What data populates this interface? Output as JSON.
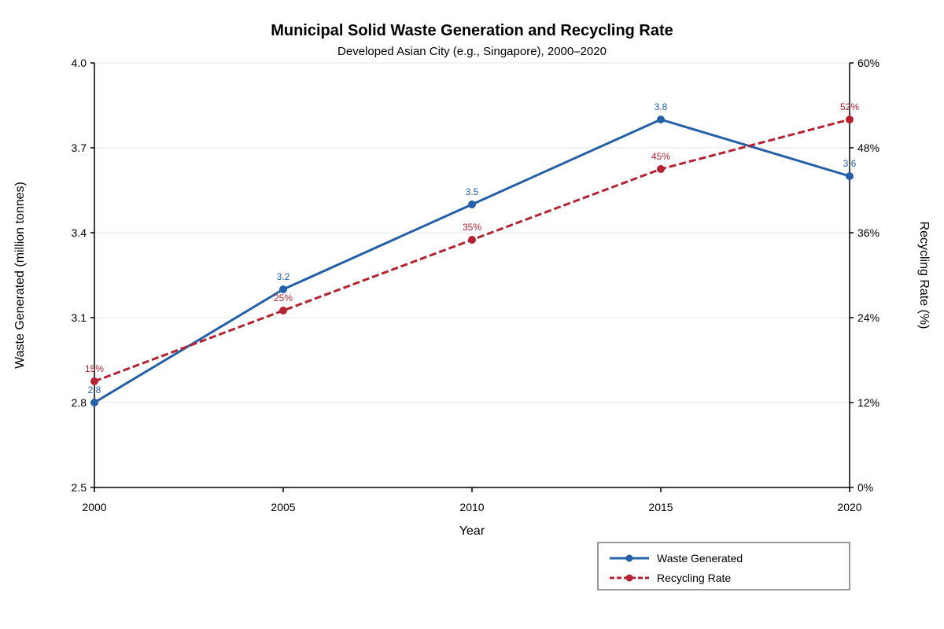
{
  "chart_data": {
    "type": "line",
    "title": "Municipal Solid Waste Generation and Recycling Rate",
    "subtitle": "Developed Asian City (e.g., Singapore), 2000–2020",
    "xlabel": "Year",
    "ylabel_left": "Waste Generated (million tonnes)",
    "ylabel_right": "Recycling Rate (%)",
    "x": [
      "2000",
      "2005",
      "2010",
      "2015",
      "2020"
    ],
    "x_values": [
      2000,
      2005,
      2010,
      2015,
      2020
    ],
    "ylim_left": [
      2.5,
      4.0
    ],
    "yticks_left": [
      "2.5",
      "2.8",
      "3.1",
      "3.4",
      "3.7",
      "4.0"
    ],
    "yticks_left_values": [
      2.5,
      2.8,
      3.1,
      3.4,
      3.7,
      4.0
    ],
    "ylim_right": [
      0,
      60
    ],
    "yticks_right": [
      "0%",
      "12%",
      "24%",
      "36%",
      "48%",
      "60%"
    ],
    "yticks_right_values": [
      0,
      12,
      24,
      36,
      48,
      60
    ],
    "grid": true,
    "legend_position": "bottom-right",
    "series": [
      {
        "name": "Waste Generated",
        "axis": "left",
        "values": [
          2.8,
          3.2,
          3.5,
          3.8,
          3.6
        ],
        "labels": [
          "2.8",
          "3.2",
          "3.5",
          "3.8",
          "3.6"
        ],
        "color": "#2560a8",
        "style": "solid"
      },
      {
        "name": "Recycling Rate",
        "axis": "right",
        "values": [
          15,
          25,
          35,
          45,
          52
        ],
        "labels": [
          "15%",
          "25%",
          "35%",
          "45%",
          "52%"
        ],
        "color": "#b52332",
        "style": "dashed"
      }
    ]
  }
}
